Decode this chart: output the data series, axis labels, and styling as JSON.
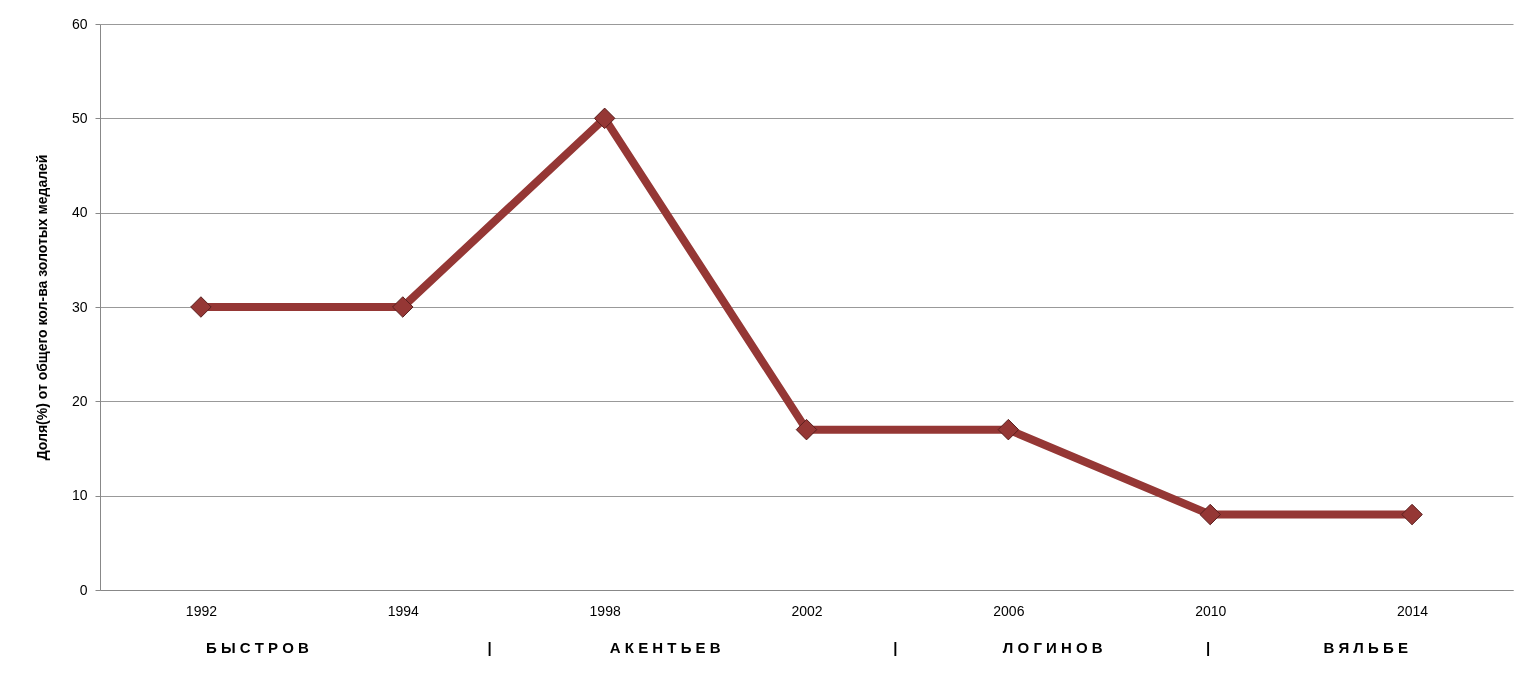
{
  "chart_data": {
    "type": "line",
    "ylabel": "Доля(%) от  общего кол-ва золотых медалей",
    "categories": [
      "1992",
      "1994",
      "1998",
      "2002",
      "2006",
      "2010",
      "2014"
    ],
    "series": [
      {
        "color": "#953735",
        "values": [
          30,
          30,
          50,
          17,
          17,
          8,
          8
        ]
      }
    ],
    "ylim": [
      0,
      60
    ],
    "yticks": [
      0,
      10,
      20,
      30,
      40,
      50,
      60
    ],
    "grid": "y",
    "marker": "diamond",
    "line_style": "solid",
    "annotations": [
      "Б Ы С Т Р О В",
      "|",
      "А К Е Н Т Ь Е В",
      "|",
      "Л О Г И Н О В",
      "|",
      "В Я Л Ь Б Е"
    ]
  }
}
